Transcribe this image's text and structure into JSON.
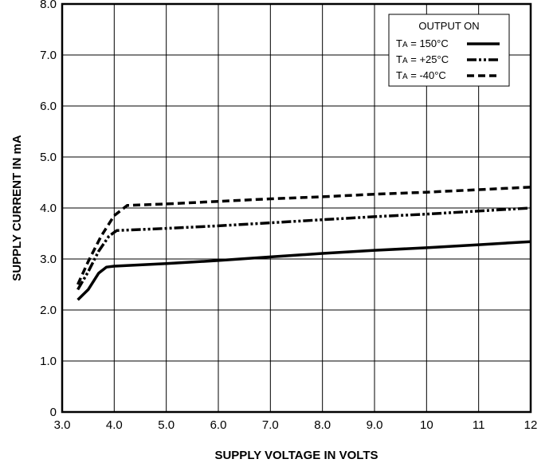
{
  "chart_data": {
    "type": "line",
    "xlabel": "SUPPLY VOLTAGE IN VOLTS",
    "ylabel": "SUPPLY CURRENT IN mA",
    "xlim": [
      3.0,
      12.0
    ],
    "ylim": [
      0,
      8.0
    ],
    "x_ticks": [
      3.0,
      4.0,
      5.0,
      6.0,
      7.0,
      8.0,
      9.0,
      10.0,
      11.0,
      12.0
    ],
    "x_tick_labels": [
      "3.0",
      "4.0",
      "5.0",
      "6.0",
      "7.0",
      "8.0",
      "9.0",
      "10",
      "11",
      "12"
    ],
    "y_ticks": [
      0,
      1.0,
      2.0,
      3.0,
      4.0,
      5.0,
      6.0,
      7.0,
      8.0
    ],
    "y_tick_labels": [
      "0",
      "1.0",
      "2.0",
      "3.0",
      "4.0",
      "5.0",
      "6.0",
      "7.0",
      "8.0"
    ],
    "grid": true,
    "legend": {
      "placement": "top-right",
      "title": "OUTPUT ON",
      "entries": [
        {
          "prefix": "T",
          "sub": "A",
          "text": " = 150°C",
          "style": "solid"
        },
        {
          "prefix": "T",
          "sub": "A",
          "text": " = +25°C",
          "style": "dash-dot-dot"
        },
        {
          "prefix": "T",
          "sub": "A",
          "text": " = -40°C",
          "style": "dashed"
        }
      ]
    },
    "series": [
      {
        "name": "TA = 150°C",
        "style": "solid",
        "color": "#000000",
        "points": [
          [
            3.3,
            2.2
          ],
          [
            3.5,
            2.4
          ],
          [
            3.7,
            2.72
          ],
          [
            3.85,
            2.84
          ],
          [
            4.0,
            2.86
          ],
          [
            5.0,
            2.91
          ],
          [
            6.0,
            2.97
          ],
          [
            7.0,
            3.04
          ],
          [
            8.0,
            3.11
          ],
          [
            9.0,
            3.17
          ],
          [
            10.0,
            3.22
          ],
          [
            11.0,
            3.28
          ],
          [
            12.0,
            3.34
          ]
        ]
      },
      {
        "name": "TA = +25°C",
        "style": "dash-dot-dot",
        "color": "#000000",
        "points": [
          [
            3.3,
            2.4
          ],
          [
            3.5,
            2.75
          ],
          [
            3.7,
            3.15
          ],
          [
            3.9,
            3.45
          ],
          [
            4.05,
            3.56
          ],
          [
            5.0,
            3.6
          ],
          [
            6.0,
            3.65
          ],
          [
            7.0,
            3.71
          ],
          [
            8.0,
            3.77
          ],
          [
            9.0,
            3.83
          ],
          [
            10.0,
            3.88
          ],
          [
            11.0,
            3.94
          ],
          [
            12.0,
            4.0
          ]
        ]
      },
      {
        "name": "TA = -40°C",
        "style": "dashed",
        "color": "#000000",
        "points": [
          [
            3.3,
            2.5
          ],
          [
            3.5,
            2.95
          ],
          [
            3.75,
            3.45
          ],
          [
            4.0,
            3.85
          ],
          [
            4.25,
            4.05
          ],
          [
            5.0,
            4.08
          ],
          [
            6.0,
            4.13
          ],
          [
            7.0,
            4.18
          ],
          [
            8.0,
            4.22
          ],
          [
            9.0,
            4.27
          ],
          [
            10.0,
            4.31
          ],
          [
            11.0,
            4.36
          ],
          [
            12.0,
            4.41
          ]
        ]
      }
    ]
  }
}
